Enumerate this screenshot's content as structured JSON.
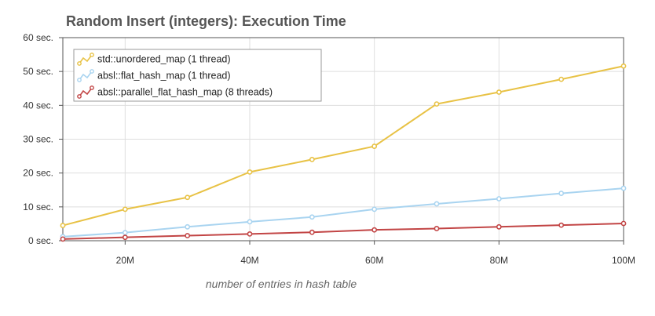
{
  "chart_data": {
    "type": "line",
    "title": "Random Insert (integers): Execution Time",
    "xlabel": "number of entries in hash table",
    "ylabel": "",
    "x": [
      10,
      20,
      30,
      40,
      50,
      60,
      70,
      80,
      90,
      100
    ],
    "xlim": [
      10,
      100
    ],
    "ylim": [
      0,
      60
    ],
    "x_ticks": [
      {
        "value": 20,
        "label": "20M"
      },
      {
        "value": 40,
        "label": "40M"
      },
      {
        "value": 60,
        "label": "60M"
      },
      {
        "value": 80,
        "label": "80M"
      },
      {
        "value": 100,
        "label": "100M"
      }
    ],
    "y_ticks": [
      {
        "value": 0,
        "label": "0 sec."
      },
      {
        "value": 10,
        "label": "10 sec."
      },
      {
        "value": 20,
        "label": "20 sec."
      },
      {
        "value": 30,
        "label": "30 sec."
      },
      {
        "value": 40,
        "label": "40 sec."
      },
      {
        "value": 50,
        "label": "50 sec."
      },
      {
        "value": 60,
        "label": "60 sec."
      }
    ],
    "grid": true,
    "legend": "top-left",
    "series": [
      {
        "name": "std::unordered_map (1 thread)",
        "color": "#e8c245",
        "values": [
          4.5,
          9.3,
          12.8,
          20.3,
          24.0,
          27.9,
          40.4,
          43.9,
          47.7,
          51.6
        ]
      },
      {
        "name": "absl::flat_hash_map (1 thread)",
        "color": "#a9d4f0",
        "values": [
          1.2,
          2.4,
          4.1,
          5.6,
          7.0,
          9.3,
          10.9,
          12.4,
          14.0,
          15.5
        ]
      },
      {
        "name": "absl::parallel_flat_hash_map (8 threads)",
        "color": "#c24545",
        "values": [
          0.5,
          1.0,
          1.5,
          2.0,
          2.5,
          3.2,
          3.6,
          4.1,
          4.6,
          5.1
        ]
      }
    ]
  }
}
